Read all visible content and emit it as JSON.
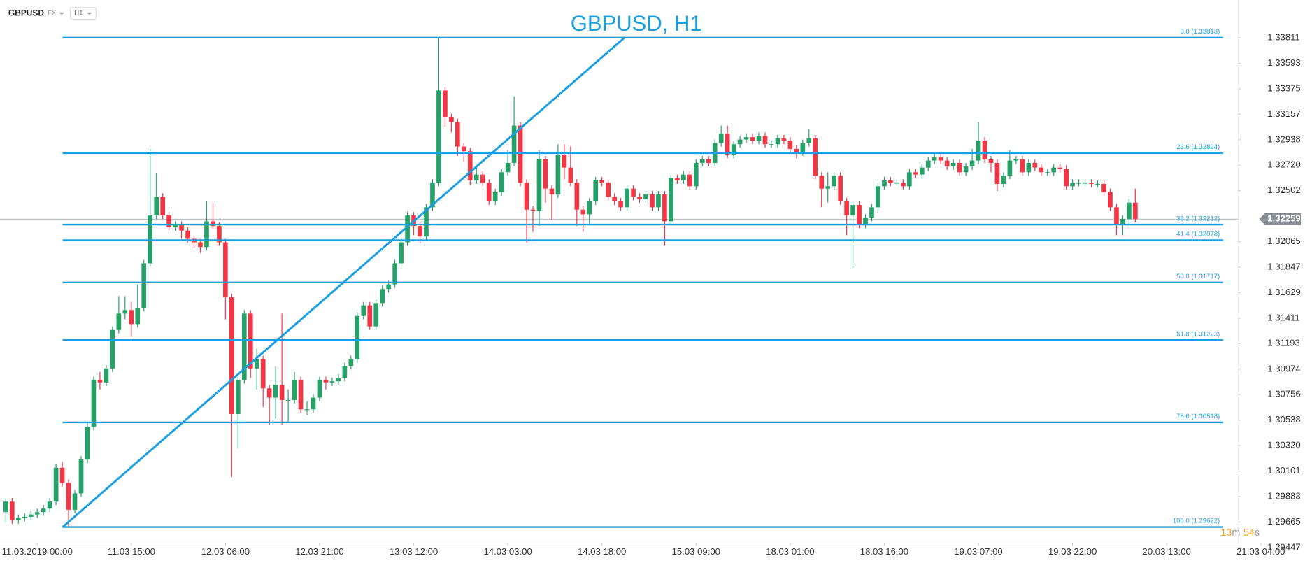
{
  "header": {
    "symbol": "GBPUSD",
    "market": "FX",
    "interval": "H1"
  },
  "timer": {
    "minutes": 13,
    "minutes_unit": "m",
    "seconds": 54,
    "seconds_unit": "s"
  },
  "chart_data": {
    "type": "candlestick",
    "title": "GBPUSD, H1",
    "up_color": "#26a269",
    "down_color": "#f23645",
    "fib_color": "#1a9fe0",
    "ylim": [
      1.2945,
      1.34135
    ],
    "xlim": [
      -0.93,
      196.4
    ],
    "yticks": [
      1.33811,
      1.33593,
      1.33375,
      1.33157,
      1.32938,
      {
        "value": 1.3272,
        "label": "1.32720"
      },
      1.32502,
      1.32065,
      1.31847,
      1.31629,
      1.31411,
      1.31193,
      1.30974,
      1.30756,
      1.30538,
      {
        "value": 1.3032,
        "label": "1.30320"
      },
      1.30101,
      1.29883,
      1.29665,
      1.29447
    ],
    "xticks": [
      {
        "value": 5,
        "label": "11.03.2019  00:00"
      },
      {
        "value": 20,
        "label": "11.03  15:00"
      },
      {
        "value": 35,
        "label": "12.03  06:00"
      },
      {
        "value": 50,
        "label": "12.03  21:00"
      },
      {
        "value": 65,
        "label": "13.03  12:00"
      },
      {
        "value": 80,
        "label": "14.03  03:00"
      },
      {
        "value": 95,
        "label": "14.03  18:00"
      },
      {
        "value": 110,
        "label": "15.03  09:00"
      },
      {
        "value": 125,
        "label": "18.03  01:00"
      },
      {
        "value": 140,
        "label": "18.03  16:00"
      },
      {
        "value": 155,
        "label": "19.03  07:00"
      },
      {
        "value": 170,
        "label": "19.03  22:00"
      },
      {
        "value": 185,
        "label": "20.03  13:00"
      },
      {
        "value": 200,
        "label": "21.03  04:00"
      }
    ],
    "current_price": 1.32259,
    "fib_levels": [
      {
        "value": 1.33813,
        "label": "0.0 (1.33813)"
      },
      {
        "value": 1.32824,
        "label": "23.6 (1.32824)"
      },
      {
        "value": 1.32212,
        "label": "38.2 (1.32212)"
      },
      {
        "value": 1.32078,
        "label": "41.4 (1.32078)"
      },
      {
        "value": 1.31717,
        "label": "50.0 (1.31717)"
      },
      {
        "value": 1.31223,
        "label": "61.8 (1.31223)"
      },
      {
        "value": 1.30518,
        "label": "78.6 (1.30518)"
      },
      {
        "value": 1.29622,
        "label": "100.0 (1.29622)"
      }
    ],
    "open": [
      1.2975,
      1.2984,
      1.2968,
      1.297,
      1.2971,
      1.2973,
      1.2975,
      1.2978,
      1.2984,
      1.3013,
      1.3,
      1.2977,
      1.2991,
      1.302,
      1.3048,
      1.3088,
      1.3086,
      1.3098,
      1.3131,
      1.3145,
      1.3148,
      1.3136,
      1.315,
      1.3188,
      1.3229,
      1.3245,
      1.3229,
      1.3219,
      1.3221,
      1.3216,
      1.3209,
      1.3206,
      1.3202,
      1.3224,
      1.322,
      1.3206,
      1.3159,
      1.3059,
      1.3088,
      1.3145,
      1.3098,
      1.3106,
      1.3081,
      1.3073,
      1.3084,
      1.3071,
      1.3071,
      1.3088,
      1.3063,
      1.3063,
      1.3073,
      1.3088,
      1.3086,
      1.3087,
      1.309,
      1.31,
      1.3106,
      1.3143,
      1.3152,
      1.3134,
      1.3154,
      1.3166,
      1.317,
      1.3188,
      1.3206,
      1.3229,
      1.322,
      1.3211,
      1.3236,
      1.3257,
      1.3336,
      1.3313,
      1.3309,
      1.3288,
      1.3284,
      1.3259,
      1.3264,
      1.3257,
      1.3241,
      1.3249,
      1.3266,
      1.3274,
      1.3306,
      1.3257,
      1.3234,
      1.3233,
      1.3277,
      1.3252,
      1.3247,
      1.3281,
      1.327,
      1.3257,
      1.3234,
      1.323,
      1.3241,
      1.3259,
      1.3257,
      1.3245,
      1.3241,
      1.3236,
      1.3252,
      1.3245,
      1.3243,
      1.3247,
      1.3236,
      1.3247,
      1.3224,
      1.3261,
      1.3259,
      1.3264,
      1.3254,
      1.3274,
      1.3277,
      1.3274,
      1.3291,
      1.3299,
      1.3281,
      1.329,
      1.3294,
      1.3296,
      1.3293,
      1.3297,
      1.329,
      1.329,
      1.3295,
      1.3293,
      1.3286,
      1.3283,
      1.3291,
      1.3295,
      1.3263,
      1.3252,
      1.3254,
      1.3263,
      1.3241,
      1.3229,
      1.3238,
      1.3221,
      1.3227,
      1.3236,
      1.3254,
      1.3259,
      1.3257,
      1.3257,
      1.3254,
      1.3266,
      1.3264,
      1.327,
      1.3276,
      1.3279,
      1.3276,
      1.3271,
      1.3274,
      1.3266,
      1.3271,
      1.3276,
      1.3293,
      1.3277,
      1.3274,
      1.3256,
      1.3263,
      1.3276,
      1.3277,
      1.3266,
      1.3274,
      1.327,
      1.3266,
      1.3266,
      1.327,
      1.3269,
      1.3254,
      1.3257,
      1.3257,
      1.3257,
      1.3256,
      1.3256,
      1.3249,
      1.3236,
      1.3221,
      1.3226,
      1.324
    ],
    "high": [
      1.2987,
      1.2987,
      1.2973,
      1.2974,
      1.2976,
      1.2978,
      1.2981,
      1.2987,
      1.3016,
      1.3018,
      1.3003,
      1.2994,
      1.3023,
      1.3051,
      1.3091,
      1.3095,
      1.3101,
      1.3134,
      1.316,
      1.316,
      1.3155,
      1.317,
      1.3191,
      1.3286,
      1.3265,
      1.3248,
      1.3232,
      1.3224,
      1.3224,
      1.3219,
      1.3212,
      1.3209,
      1.3241,
      1.324,
      1.3223,
      1.3209,
      1.3162,
      1.3091,
      1.3148,
      1.3148,
      1.3115,
      1.3109,
      1.3084,
      1.31,
      1.3145,
      1.308,
      1.3095,
      1.3091,
      1.307,
      1.3076,
      1.3091,
      1.3091,
      1.309,
      1.3093,
      1.3103,
      1.3109,
      1.3146,
      1.3155,
      1.3155,
      1.3157,
      1.3169,
      1.3173,
      1.3191,
      1.3209,
      1.3232,
      1.3232,
      1.3223,
      1.3239,
      1.326,
      1.3381,
      1.3339,
      1.3316,
      1.3312,
      1.3291,
      1.3287,
      1.327,
      1.3267,
      1.326,
      1.3252,
      1.3269,
      1.3285,
      1.3331,
      1.3309,
      1.326,
      1.3237,
      1.3285,
      1.328,
      1.3255,
      1.329,
      1.329,
      1.3288,
      1.326,
      1.3237,
      1.3244,
      1.3262,
      1.3262,
      1.326,
      1.3248,
      1.3244,
      1.3255,
      1.3255,
      1.3248,
      1.325,
      1.325,
      1.325,
      1.325,
      1.3264,
      1.3264,
      1.3267,
      1.3267,
      1.3277,
      1.328,
      1.328,
      1.3294,
      1.3306,
      1.3306,
      1.3293,
      1.3297,
      1.3299,
      1.3299,
      1.33,
      1.33,
      1.3293,
      1.3298,
      1.3298,
      1.3296,
      1.3289,
      1.3294,
      1.3303,
      1.3298,
      1.3266,
      1.3266,
      1.3266,
      1.3266,
      1.3244,
      1.3241,
      1.3241,
      1.323,
      1.3239,
      1.3257,
      1.3262,
      1.3262,
      1.326,
      1.326,
      1.3269,
      1.3269,
      1.3273,
      1.3279,
      1.3282,
      1.3282,
      1.3279,
      1.3277,
      1.3277,
      1.3274,
      1.3286,
      1.3309,
      1.3296,
      1.328,
      1.3277,
      1.3266,
      1.3285,
      1.328,
      1.328,
      1.3277,
      1.3277,
      1.3273,
      1.3269,
      1.3273,
      1.3273,
      1.3272,
      1.326,
      1.326,
      1.326,
      1.326,
      1.3259,
      1.3259,
      1.3252,
      1.3239,
      1.3229,
      1.3243,
      1.3252
    ],
    "low": [
      1.2966,
      1.2965,
      1.2965,
      1.2967,
      1.2968,
      1.297,
      1.2972,
      1.2975,
      1.2981,
      1.2997,
      1.2962,
      1.2974,
      1.2988,
      1.3017,
      1.3045,
      1.308,
      1.3083,
      1.3095,
      1.3128,
      1.314,
      1.3125,
      1.3133,
      1.3147,
      1.3185,
      1.3226,
      1.3226,
      1.3216,
      1.3216,
      1.3209,
      1.3206,
      1.3201,
      1.3197,
      1.3199,
      1.3217,
      1.3203,
      1.314,
      1.3005,
      1.303,
      1.3085,
      1.309,
      1.308,
      1.3065,
      1.305,
      1.3055,
      1.305,
      1.3052,
      1.3068,
      1.306,
      1.3058,
      1.306,
      1.307,
      1.308,
      1.3083,
      1.3084,
      1.3087,
      1.3097,
      1.3103,
      1.314,
      1.3131,
      1.3131,
      1.3151,
      1.3163,
      1.3167,
      1.3185,
      1.3203,
      1.3212,
      1.3205,
      1.3208,
      1.3233,
      1.3254,
      1.3305,
      1.33,
      1.328,
      1.3275,
      1.3255,
      1.3256,
      1.3254,
      1.3238,
      1.3238,
      1.3246,
      1.3263,
      1.3271,
      1.3254,
      1.3206,
      1.3215,
      1.322,
      1.324,
      1.3225,
      1.3244,
      1.326,
      1.3254,
      1.322,
      1.3215,
      1.3222,
      1.3238,
      1.3254,
      1.3242,
      1.3238,
      1.3233,
      1.3233,
      1.3242,
      1.324,
      1.324,
      1.3233,
      1.3233,
      1.3203,
      1.3221,
      1.3256,
      1.3256,
      1.3251,
      1.3251,
      1.3271,
      1.3271,
      1.3271,
      1.3288,
      1.3278,
      1.3278,
      1.3287,
      1.3291,
      1.329,
      1.329,
      1.3287,
      1.3287,
      1.3287,
      1.329,
      1.3283,
      1.3278,
      1.328,
      1.3288,
      1.326,
      1.3236,
      1.324,
      1.3251,
      1.3238,
      1.3212,
      1.3184,
      1.3218,
      1.3218,
      1.3224,
      1.3233,
      1.3251,
      1.3254,
      1.3254,
      1.3251,
      1.3251,
      1.3261,
      1.3261,
      1.3267,
      1.3273,
      1.3273,
      1.3268,
      1.3268,
      1.3263,
      1.3263,
      1.3268,
      1.3273,
      1.3274,
      1.3266,
      1.325,
      1.3253,
      1.326,
      1.3273,
      1.3263,
      1.3263,
      1.3267,
      1.3263,
      1.3263,
      1.3263,
      1.3266,
      1.3251,
      1.3251,
      1.3254,
      1.3254,
      1.3253,
      1.3253,
      1.3246,
      1.3233,
      1.3212,
      1.3212,
      1.3218,
      1.3223
    ],
    "close": [
      1.2984,
      1.2968,
      1.297,
      1.2971,
      1.2973,
      1.2975,
      1.2978,
      1.2984,
      1.3013,
      1.3,
      1.2977,
      1.2991,
      1.302,
      1.3048,
      1.3088,
      1.3086,
      1.3098,
      1.3131,
      1.3145,
      1.3148,
      1.3136,
      1.315,
      1.3188,
      1.3229,
      1.3245,
      1.3229,
      1.3219,
      1.3221,
      1.3216,
      1.3209,
      1.3206,
      1.3202,
      1.3224,
      1.322,
      1.3206,
      1.3159,
      1.3059,
      1.3088,
      1.3145,
      1.3098,
      1.3106,
      1.3081,
      1.3073,
      1.3084,
      1.3071,
      1.3071,
      1.3088,
      1.3063,
      1.3063,
      1.3073,
      1.3088,
      1.3086,
      1.3087,
      1.309,
      1.31,
      1.3106,
      1.3143,
      1.3152,
      1.3134,
      1.3154,
      1.3166,
      1.317,
      1.3188,
      1.3206,
      1.3229,
      1.322,
      1.3211,
      1.3236,
      1.3257,
      1.3336,
      1.3313,
      1.3309,
      1.3288,
      1.3284,
      1.3259,
      1.3264,
      1.3257,
      1.3241,
      1.3249,
      1.3266,
      1.3274,
      1.3306,
      1.3257,
      1.3234,
      1.3233,
      1.3277,
      1.3252,
      1.3247,
      1.3281,
      1.327,
      1.3257,
      1.3234,
      1.323,
      1.3241,
      1.3259,
      1.3257,
      1.3245,
      1.3241,
      1.3236,
      1.3252,
      1.3245,
      1.3243,
      1.3247,
      1.3236,
      1.3247,
      1.3224,
      1.3261,
      1.3259,
      1.3264,
      1.3254,
      1.3274,
      1.3277,
      1.3274,
      1.3291,
      1.3299,
      1.3281,
      1.329,
      1.3294,
      1.3296,
      1.3293,
      1.3297,
      1.329,
      1.329,
      1.3295,
      1.3293,
      1.3286,
      1.3283,
      1.3291,
      1.3295,
      1.3263,
      1.3252,
      1.3254,
      1.3263,
      1.3241,
      1.3229,
      1.3238,
      1.3221,
      1.3227,
      1.3236,
      1.3254,
      1.3259,
      1.3257,
      1.3257,
      1.3254,
      1.3266,
      1.3264,
      1.327,
      1.3276,
      1.3279,
      1.3276,
      1.3271,
      1.3274,
      1.3266,
      1.3271,
      1.3276,
      1.3293,
      1.3277,
      1.3274,
      1.3256,
      1.3263,
      1.3276,
      1.3277,
      1.3266,
      1.3274,
      1.327,
      1.3266,
      1.3266,
      1.327,
      1.3269,
      1.3254,
      1.3257,
      1.3257,
      1.3257,
      1.3256,
      1.3256,
      1.3249,
      1.3236,
      1.3221,
      1.3226,
      1.324,
      1.3226
    ]
  }
}
